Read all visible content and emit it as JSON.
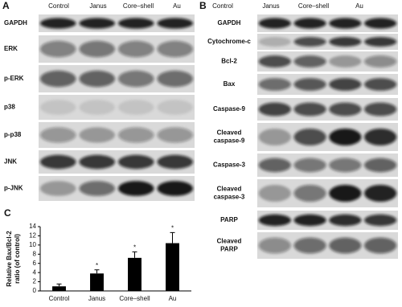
{
  "panel_a": {
    "label": "A",
    "columns": [
      "Control",
      "Janus",
      "Core–shell",
      "Au"
    ],
    "rows": [
      "GAPDH",
      "ERK",
      "p-ERK",
      "p38",
      "p-p38",
      "JNK",
      "p-JNK"
    ]
  },
  "panel_b": {
    "label": "B",
    "columns": [
      "Control",
      "Janus",
      "Core–shell",
      "Au"
    ],
    "rows": [
      [
        "GAPDH"
      ],
      [
        "Cytochrome-c"
      ],
      [
        "Bcl-2"
      ],
      [
        "Bax"
      ],
      [
        "Caspase-9"
      ],
      [
        "Cleaved",
        "caspase-9"
      ],
      [
        "Caspase-3"
      ],
      [
        "Cleaved",
        "caspase-3"
      ],
      [
        "PARP"
      ],
      [
        "Cleaved",
        "PARP"
      ]
    ]
  },
  "panel_c": {
    "label": "C"
  },
  "chart_data": {
    "type": "bar",
    "y_label": [
      "Relative Bax/Bcl-2",
      "ratio (of control)"
    ],
    "categories": [
      "Control",
      "Janus",
      "Core–shell",
      "Au"
    ],
    "values": [
      1,
      3.8,
      7.2,
      10.4
    ],
    "errors": [
      0.5,
      0.8,
      1.3,
      2.3
    ],
    "significance": [
      null,
      "*",
      "*",
      "*"
    ],
    "color": "#000000",
    "ylim": [
      0,
      14
    ],
    "yticks": [
      0,
      2,
      4,
      6,
      8,
      10,
      12,
      14
    ]
  }
}
